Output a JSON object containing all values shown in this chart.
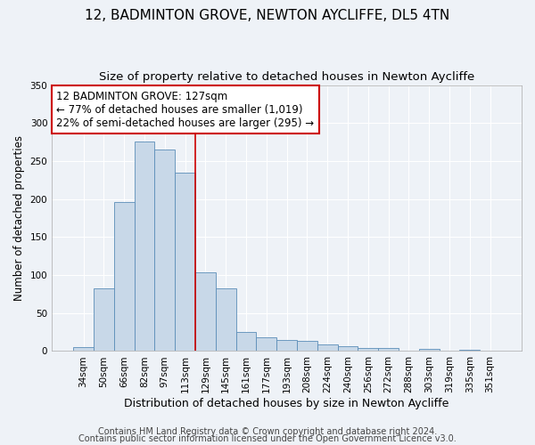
{
  "title": "12, BADMINTON GROVE, NEWTON AYCLIFFE, DL5 4TN",
  "subtitle": "Size of property relative to detached houses in Newton Aycliffe",
  "xlabel": "Distribution of detached houses by size in Newton Aycliffe",
  "ylabel": "Number of detached properties",
  "categories": [
    "34sqm",
    "50sqm",
    "66sqm",
    "82sqm",
    "97sqm",
    "113sqm",
    "129sqm",
    "145sqm",
    "161sqm",
    "177sqm",
    "193sqm",
    "208sqm",
    "224sqm",
    "240sqm",
    "256sqm",
    "272sqm",
    "288sqm",
    "303sqm",
    "319sqm",
    "335sqm",
    "351sqm"
  ],
  "values": [
    5,
    83,
    196,
    276,
    265,
    235,
    104,
    83,
    25,
    18,
    15,
    13,
    9,
    6,
    4,
    4,
    1,
    3,
    1,
    2,
    1
  ],
  "bar_color": "#c8d8e8",
  "bar_edge_color": "#5b8db8",
  "property_line_color": "#cc0000",
  "annotation_text": "12 BADMINTON GROVE: 127sqm\n← 77% of detached houses are smaller (1,019)\n22% of semi-detached houses are larger (295) →",
  "annotation_box_color": "#ffffff",
  "annotation_box_edge_color": "#cc0000",
  "ylim": [
    0,
    350
  ],
  "yticks": [
    0,
    50,
    100,
    150,
    200,
    250,
    300,
    350
  ],
  "background_color": "#eef2f7",
  "grid_color": "#ffffff",
  "footer_line1": "Contains HM Land Registry data © Crown copyright and database right 2024.",
  "footer_line2": "Contains public sector information licensed under the Open Government Licence v3.0.",
  "title_fontsize": 11,
  "subtitle_fontsize": 9.5,
  "xlabel_fontsize": 9,
  "ylabel_fontsize": 8.5,
  "annotation_fontsize": 8.5,
  "tick_fontsize": 7.5,
  "footer_fontsize": 7
}
